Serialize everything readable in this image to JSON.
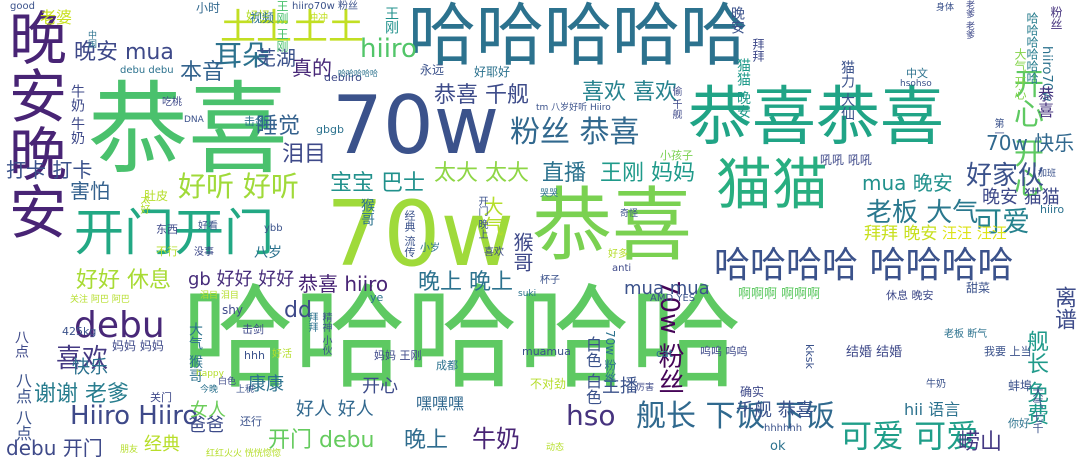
{
  "words": [
    {
      "text": "哈哈哈哈哈",
      "color": "#5ec962"
    },
    {
      "text": "哈哈哈哈哈",
      "color": "#2c728e"
    },
    {
      "text": "恭喜",
      "color": "#4ac16d"
    },
    {
      "text": "70w",
      "color": "#9fda3a"
    },
    {
      "text": "晚安晚安",
      "color": "#482475"
    },
    {
      "text": "恭喜恭喜",
      "color": "#20a486"
    },
    {
      "text": "70w",
      "color": "#3b528b"
    },
    {
      "text": "恭喜",
      "color": "#7ad151"
    },
    {
      "text": "猫猫",
      "color": "#28ae80"
    },
    {
      "text": "开门开门",
      "color": "#22a884"
    },
    {
      "text": "土土土土",
      "color": "#c2df23"
    },
    {
      "text": "哈哈哈哈 哈哈哈哈",
      "color": "#3b528b"
    },
    {
      "text": "debu",
      "color": "#482878"
    },
    {
      "text": "粉丝 恭喜",
      "color": "#31688e"
    },
    {
      "text": "好听 好听",
      "color": "#a0da39"
    },
    {
      "text": "可爱 可爱",
      "color": "#1f9e89"
    },
    {
      "text": "舰长 下饭 下饭",
      "color": "#30698e"
    },
    {
      "text": "Hiiro Hiiro",
      "color": "#3e4989"
    },
    {
      "text": "hso",
      "color": "#46337e"
    },
    {
      "text": "开心 开心",
      "color": "#5ec962"
    },
    {
      "text": "喜欢",
      "color": "#443983"
    },
    {
      "text": "谢谢 老爹",
      "color": "#287d8e"
    },
    {
      "text": "老板 大气",
      "color": "#2a788e"
    },
    {
      "text": "可爱",
      "color": "#26828e"
    },
    {
      "text": "好家伙",
      "color": "#3b528b"
    },
    {
      "text": "70w 粉丝",
      "color": "#450457"
    },
    {
      "text": "恭喜 千舰",
      "color": "#3e4c8a"
    },
    {
      "text": "喜欢 喜欢",
      "color": "#26828e"
    },
    {
      "text": "晚安 mua",
      "color": "#3e4989"
    },
    {
      "text": "hiiro",
      "color": "#52c569"
    },
    {
      "text": "耳朵",
      "color": "#2c728e"
    },
    {
      "text": "本音",
      "color": "#33638d"
    },
    {
      "text": "睡觉",
      "color": "#34618d"
    },
    {
      "text": "芜湖",
      "color": "#3b528b"
    },
    {
      "text": "真的",
      "color": "#482878"
    },
    {
      "text": "泪目",
      "color": "#3e4989"
    },
    {
      "text": "打卡 打卡",
      "color": "#3b528b"
    },
    {
      "text": "害怕",
      "color": "#34618d"
    },
    {
      "text": "宝宝 巴士",
      "color": "#21918c"
    },
    {
      "text": "太大 太大",
      "color": "#8ed645"
    },
    {
      "text": "直播",
      "color": "#2c728e"
    },
    {
      "text": "王刚 妈妈",
      "color": "#1f9a8a"
    },
    {
      "text": "mua 晚安",
      "color": "#21918c"
    },
    {
      "text": "晚安 猫猫",
      "color": "#3e4989"
    },
    {
      "text": "拜拜 晚安",
      "color": "#c8e020"
    },
    {
      "text": "汪汪 汪汪",
      "color": "#dde318"
    },
    {
      "text": "好好 休息",
      "color": "#a8db34"
    },
    {
      "text": "gb 好好 好好",
      "color": "#472d7b"
    },
    {
      "text": "恭喜 hiiro",
      "color": "#482475"
    },
    {
      "text": "晚上 晚上",
      "color": "#2c728e"
    },
    {
      "text": "mua mua",
      "color": "#3b528b"
    },
    {
      "text": "70w 快乐",
      "color": "#31688e"
    },
    {
      "text": "大气",
      "color": "#b5de2b"
    },
    {
      "text": "猴哥",
      "color": "#3e4989"
    },
    {
      "text": "dd",
      "color": "#3e4989"
    },
    {
      "text": "快乐",
      "color": "#2c728e"
    },
    {
      "text": "debu 开门",
      "color": "#3e4989"
    },
    {
      "text": "开门 debu",
      "color": "#65cb5e"
    },
    {
      "text": "晚上",
      "color": "#2f6c8e"
    },
    {
      "text": "牛奶",
      "color": "#482475"
    },
    {
      "text": "爸爸",
      "color": "#3e4c8a"
    },
    {
      "text": "经典",
      "color": "#b8de29"
    },
    {
      "text": "好人 好人",
      "color": "#31688e"
    },
    {
      "text": "康康",
      "color": "#2c728e"
    },
    {
      "text": "开心",
      "color": "#3e4c8a"
    },
    {
      "text": "主播",
      "color": "#3b528b"
    },
    {
      "text": "嘿嘿嘿",
      "color": "#31688e"
    },
    {
      "text": "女人",
      "color": "#6ccd5a"
    },
    {
      "text": "千舰 恭喜",
      "color": "#3b528b"
    },
    {
      "text": "崂山",
      "color": "#443983"
    },
    {
      "text": "hii 语言",
      "color": "#2c728e"
    },
    {
      "text": "舰长 免费",
      "color": "#1f9a8a"
    },
    {
      "text": "离谱",
      "color": "#3e4c8a"
    },
    {
      "text": "哈哈哈哈哈哈",
      "color": "#287d8e"
    },
    {
      "text": "粉丝",
      "color": "#46337e"
    },
    {
      "text": "王刚",
      "color": "#21918c"
    },
    {
      "text": "晚安",
      "color": "#3b528b"
    },
    {
      "text": "拜拜",
      "color": "#3e4989"
    },
    {
      "text": "猫猫 晚安",
      "color": "#1f9a8a"
    },
    {
      "text": "猫力 大仙",
      "color": "#3b528b"
    },
    {
      "text": "hiiro70w",
      "color": "#2c728e"
    },
    {
      "text": "恭喜",
      "color": "#46337e"
    },
    {
      "text": "大气 开心",
      "color": "#84d44b"
    },
    {
      "text": "牛奶 牛奶",
      "color": "#3e4989"
    },
    {
      "text": "八点 八点",
      "color": "#3b528b"
    },
    {
      "text": "八点",
      "color": "#3e4989"
    },
    {
      "text": "大气 猴哥",
      "color": "#2c728e"
    },
    {
      "text": "猴哥",
      "color": "#2c728e"
    },
    {
      "text": "白色 白色",
      "color": "#3b528b"
    },
    {
      "text": "70w 粉丝",
      "color": "#2c728e"
    },
    {
      "text": "好耶好",
      "color": "#2c728e"
    },
    {
      "text": "永远",
      "color": "#3b528b"
    },
    {
      "text": "老婆",
      "color": "#c8e020"
    },
    {
      "text": "好怪",
      "color": "#b5de2b"
    },
    {
      "text": "视频",
      "color": "#2c728e"
    },
    {
      "text": "小时",
      "color": "#31688e"
    },
    {
      "text": "hiiro70w 粉丝",
      "color": "#3b528b"
    },
    {
      "text": "冲冲",
      "color": "#c2df23"
    },
    {
      "text": "good",
      "color": "#3b528b"
    },
    {
      "text": "中国",
      "color": "#2c728e"
    },
    {
      "text": "debu debu",
      "color": "#2c728e"
    },
    {
      "text": "吃桃",
      "color": "#3e4989"
    },
    {
      "text": "DNA",
      "color": "#3b528b"
    },
    {
      "text": "击剑",
      "color": "#2c728e"
    },
    {
      "text": "gbgb",
      "color": "#2c728e"
    },
    {
      "text": "debiiro",
      "color": "#3e4989"
    },
    {
      "text": "哈哈哈哈哈",
      "color": "#2c728e"
    },
    {
      "text": "太好",
      "color": "#b5de2b"
    },
    {
      "text": "肚皮",
      "color": "#b5de2b"
    },
    {
      "text": "东西",
      "color": "#3e4989"
    },
    {
      "text": "不行",
      "color": "#b5de2b"
    },
    {
      "text": "好看",
      "color": "#3b528b"
    },
    {
      "text": "没事",
      "color": "#3e4989"
    },
    {
      "text": "八岁",
      "color": "#2c728e"
    },
    {
      "text": "ybb",
      "color": "#3b528b"
    },
    {
      "text": "小孩子",
      "color": "#7ad151"
    },
    {
      "text": "吼吼 吼吼",
      "color": "#3e4989"
    },
    {
      "text": "加班",
      "color": "#3b528b"
    },
    {
      "text": "中文",
      "color": "#2c728e"
    },
    {
      "text": "hsohso",
      "color": "#3b528b"
    },
    {
      "text": "第一",
      "color": "#3b528b"
    },
    {
      "text": "tm 八岁好听 Hiiro",
      "color": "#3b528b"
    },
    {
      "text": "奇怪",
      "color": "#3b528b"
    },
    {
      "text": "哭哭",
      "color": "#2c728e"
    },
    {
      "text": "喜欢",
      "color": "#3e4989"
    },
    {
      "text": "经典 流传",
      "color": "#3b528b"
    },
    {
      "text": "小岁",
      "color": "#2c728e"
    },
    {
      "text": "anti",
      "color": "#3e4989"
    },
    {
      "text": "好多",
      "color": "#b5de2b"
    },
    {
      "text": "杯子",
      "color": "#3b528b"
    },
    {
      "text": "suki",
      "color": "#2c728e"
    },
    {
      "text": "AMD YES",
      "color": "#3b528b"
    },
    {
      "text": "啊啊啊 啊啊啊",
      "color": "#5ec962"
    },
    {
      "text": "休息 晚安",
      "color": "#3e4989"
    },
    {
      "text": "甜菜",
      "color": "#3b528b"
    },
    {
      "text": "shy",
      "color": "#3e4989"
    },
    {
      "text": "ye",
      "color": "#2c728e"
    },
    {
      "text": "425kg",
      "color": "#3b528b"
    },
    {
      "text": "关注 阿巴 阿巴",
      "color": "#b5de2b"
    },
    {
      "text": "泪目 泪目",
      "color": "#b5de2b"
    },
    {
      "text": "击剑",
      "color": "#3e4989"
    },
    {
      "text": "妈妈 妈妈",
      "color": "#3e4989"
    },
    {
      "text": "hhh",
      "color": "#3b528b"
    },
    {
      "text": "好活",
      "color": "#b5de2b"
    },
    {
      "text": "拜拜",
      "color": "#2c728e"
    },
    {
      "text": "精神 小伙",
      "color": "#3b528b"
    },
    {
      "text": "妈妈 王刚",
      "color": "#3e4989"
    },
    {
      "text": "成都",
      "color": "#2c728e"
    },
    {
      "text": "muamua",
      "color": "#3b528b"
    },
    {
      "text": "cat",
      "color": "#2c728e"
    },
    {
      "text": "呜呜 呜呜",
      "color": "#3e4989"
    },
    {
      "text": "kksk",
      "color": "#3b528b"
    },
    {
      "text": "结婚 结婚",
      "color": "#3e4989"
    },
    {
      "text": "老板 断气",
      "color": "#2c728e"
    },
    {
      "text": "我要 上当",
      "color": "#3b528b"
    },
    {
      "text": "今晚",
      "color": "#2c728e"
    },
    {
      "text": "白色",
      "color": "#3e4989"
    },
    {
      "text": "上税",
      "color": "#3b528b"
    },
    {
      "text": "不对劲",
      "color": "#b5de2b"
    },
    {
      "text": "happy",
      "color": "#b5de2b"
    },
    {
      "text": "关门",
      "color": "#3e4989"
    },
    {
      "text": "还行",
      "color": "#3b528b"
    },
    {
      "text": "确实",
      "color": "#3e4989"
    },
    {
      "text": "蚌埠",
      "color": "#3b528b"
    },
    {
      "text": "你好",
      "color": "#2c728e"
    },
    {
      "text": "ok",
      "color": "#2c728e"
    },
    {
      "text": "hhhhhh",
      "color": "#3b528b"
    },
    {
      "text": "朋友",
      "color": "#b5de2b"
    },
    {
      "text": "红红火火 恍恍惚惚",
      "color": "#b5de2b"
    },
    {
      "text": "动态",
      "color": "#b5de2b"
    },
    {
      "text": "王刚 王刚",
      "color": "#4ac16d"
    },
    {
      "text": "开门 晚上",
      "color": "#3b528b"
    },
    {
      "text": "偷 千舰",
      "color": "#3e4989"
    },
    {
      "text": "身体",
      "color": "#3b528b"
    },
    {
      "text": "老爹 老爹",
      "color": "#3e4989"
    },
    {
      "text": "大气 七千",
      "color": "#3b528b"
    },
    {
      "text": "hiiro",
      "color": "#2c728e"
    },
    {
      "text": "厉害",
      "color": "#3e4989"
    },
    {
      "text": "牛奶",
      "color": "#3b528b"
    }
  ]
}
